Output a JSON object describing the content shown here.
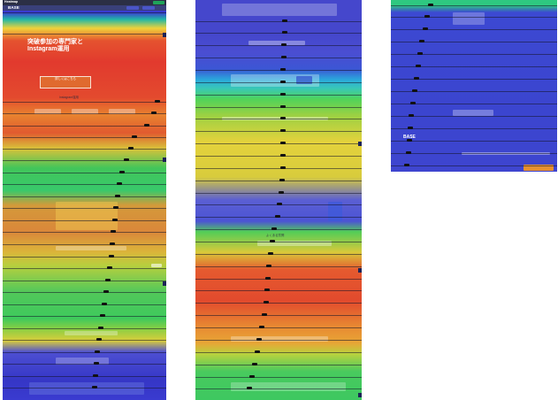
{
  "brand": {
    "logo_text": "BASE",
    "topbar_logo": "Heatmap"
  },
  "colors": {
    "hot": "#e23a2e",
    "warm": "#f0d23a",
    "mid": "#42c55a",
    "cool": "#3a3bd0"
  },
  "column1": {
    "hero_line1": "突破参加の専門家と",
    "hero_line2": "Instagram運用",
    "hero_cta": "詳しくはこちら",
    "section_label": "Instagram運用",
    "badge_labels": [
      "0%",
      "0%",
      "0%",
      "0%",
      "0%",
      "0%",
      "0%",
      "0%",
      "0%",
      "0%",
      "0%",
      "0%",
      "0%",
      "0%",
      "0%",
      "0%",
      "0%",
      "0%",
      "0%",
      "0%"
    ]
  },
  "column2": {
    "section_label": "よくある質問"
  },
  "column3": {
    "logo_text": "BASE"
  }
}
